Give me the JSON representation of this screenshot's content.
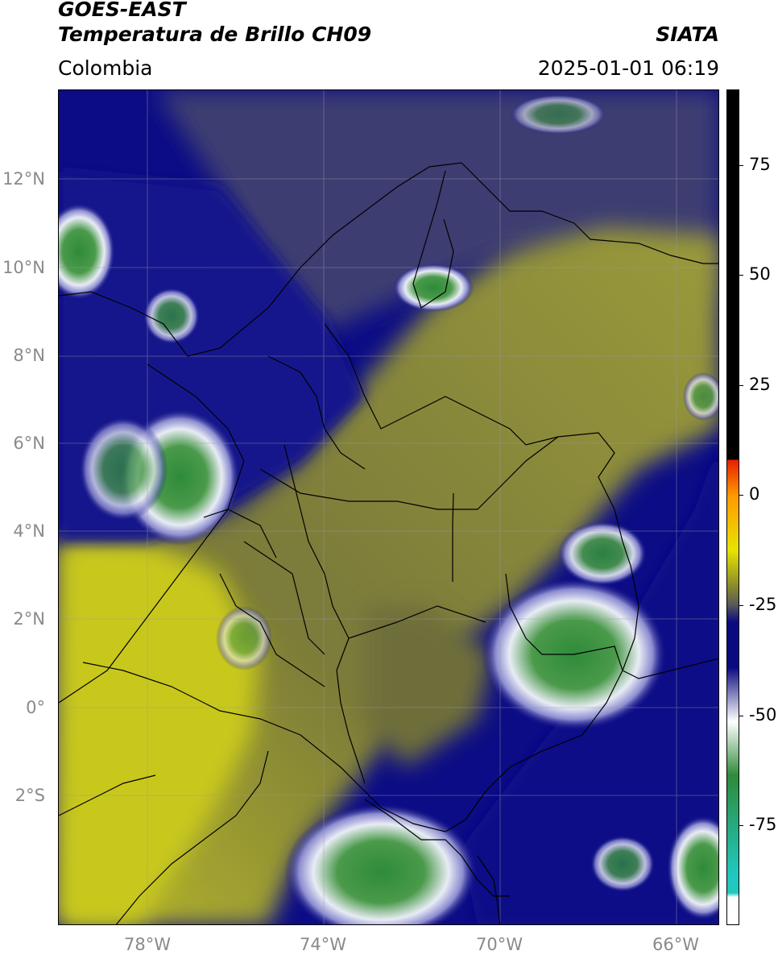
{
  "header": {
    "title_line1": "GOES-EAST",
    "title_line2": "Temperatura de Brillo CH09",
    "organization": "SIATA",
    "region": "Colombia",
    "datetime": "2025-01-01 06:19"
  },
  "map": {
    "lat_labels": [
      "12°N",
      "10°N",
      "8°N",
      "6°N",
      "4°N",
      "2°N",
      "0°",
      "2°S"
    ],
    "lon_labels": [
      "78°W",
      "74°W",
      "70°W",
      "66°W"
    ],
    "extent_lon": [
      -80,
      -65
    ],
    "extent_lat": [
      -5.2,
      14
    ],
    "gridlines": true
  },
  "colorbar": {
    "tick_labels": [
      "75",
      "50",
      "25",
      "0",
      "-25",
      "-50",
      "-75"
    ],
    "range": [
      -95,
      90
    ],
    "colors": {
      "hot": "#000000",
      "red": "#e62000",
      "orange": "#ff9a00",
      "yellow": "#e8e400",
      "olive": "#8a8a2a",
      "gray": "#5a5a5a",
      "navy": "#0a0a80",
      "white": "#ffffff",
      "green": "#2e8b3a",
      "teal": "#20c8c0"
    }
  }
}
